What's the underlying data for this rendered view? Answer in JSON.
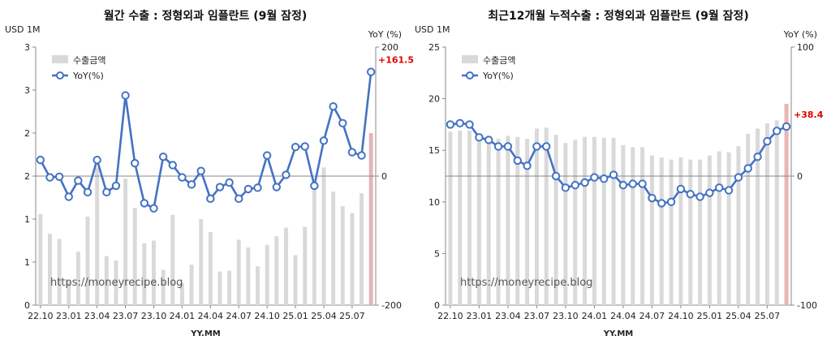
{
  "chart_data": [
    {
      "type": "bar",
      "title": "월간 수출 : 정형외과 임플란트 (9월 잠정)",
      "ylabel": "USD 1M",
      "y2label": "YoY (%)",
      "xlabel": "YY.MM",
      "ylim": [
        0,
        3
      ],
      "y2lim": [
        -200,
        200
      ],
      "yticks": [
        "0",
        "1",
        "1",
        "2",
        "2",
        "3",
        "3"
      ],
      "y2ticks": [
        "-200",
        "0",
        "200"
      ],
      "legend": {
        "position": "top-left",
        "bar_label": "수출금액",
        "line_label": "YoY(%)"
      },
      "watermark": "https://moneyrecipe.blog",
      "x": [
        "22.10",
        "22.11",
        "22.12",
        "23.01",
        "23.02",
        "23.03",
        "23.04",
        "23.05",
        "23.06",
        "23.07",
        "23.08",
        "23.09",
        "23.10",
        "23.11",
        "23.12",
        "24.01",
        "24.02",
        "24.03",
        "24.04",
        "24.05",
        "24.06",
        "24.07",
        "24.08",
        "24.09",
        "24.10",
        "24.11",
        "24.12",
        "25.01",
        "25.02",
        "25.03",
        "25.04",
        "25.05",
        "25.06",
        "25.07",
        "25.08",
        "25.09"
      ],
      "xtick_labels": [
        "22.10",
        "23.01",
        "23.04",
        "23.07",
        "23.10",
        "24.01",
        "24.04",
        "24.07",
        "24.10",
        "25.01",
        "25.04",
        "25.07"
      ],
      "series": [
        {
          "name": "수출금액",
          "kind": "bar",
          "axis": "left",
          "color": "#d9d9d9",
          "highlight_color": "#e8b4b4",
          "values": [
            1.06,
            0.83,
            0.77,
            0.28,
            0.62,
            1.03,
            1.6,
            0.57,
            0.52,
            1.47,
            1.13,
            0.72,
            0.75,
            0.41,
            1.05,
            0.26,
            0.47,
            1.0,
            0.85,
            0.39,
            0.4,
            0.76,
            0.67,
            0.45,
            0.7,
            0.8,
            0.9,
            0.58,
            0.91,
            1.4,
            1.6,
            1.32,
            1.15,
            1.07,
            1.3,
            2.0
          ]
        },
        {
          "name": "YoY(%)",
          "kind": "line",
          "axis": "right",
          "color": "#4472c4",
          "values": [
            25,
            -2,
            -1,
            -32,
            -7,
            -25,
            25,
            -25,
            -15,
            125,
            20,
            -42,
            -50,
            30,
            17,
            -2,
            -13,
            8,
            -35,
            -17,
            -10,
            -35,
            -20,
            -18,
            32,
            -17,
            2,
            45,
            46,
            -15,
            55,
            108,
            82,
            37,
            32,
            161.5
          ]
        }
      ],
      "annotation": "+161.5"
    },
    {
      "type": "bar",
      "title": "최근12개월 누적수출 : 정형외과 임플란트 (9월 잠정)",
      "ylabel": "USD 1M",
      "y2label": "YoY (%)",
      "xlabel": "YY.MM",
      "ylim": [
        0,
        25
      ],
      "y2lim": [
        -100,
        100
      ],
      "yticks": [
        "0",
        "5",
        "10",
        "15",
        "20",
        "25"
      ],
      "y2ticks": [
        "-100",
        "0",
        "100"
      ],
      "legend": {
        "position": "top-left",
        "bar_label": "수출금액",
        "line_label": "YoY(%)"
      },
      "watermark": "https://moneyrecipe.blog",
      "x": [
        "22.10",
        "22.11",
        "22.12",
        "23.01",
        "23.02",
        "23.03",
        "23.04",
        "23.05",
        "23.06",
        "23.07",
        "23.08",
        "23.09",
        "23.10",
        "23.11",
        "23.12",
        "24.01",
        "24.02",
        "24.03",
        "24.04",
        "24.05",
        "24.06",
        "24.07",
        "24.08",
        "24.09",
        "24.10",
        "24.11",
        "24.12",
        "25.01",
        "25.02",
        "25.03",
        "25.04",
        "25.05",
        "25.06",
        "25.07",
        "25.08",
        "25.09"
      ],
      "xtick_labels": [
        "22.10",
        "23.01",
        "23.04",
        "23.07",
        "23.10",
        "24.01",
        "24.04",
        "24.07",
        "24.10",
        "25.01",
        "25.04",
        "25.07"
      ],
      "series": [
        {
          "name": "수출금액",
          "kind": "bar",
          "axis": "left",
          "color": "#d9d9d9",
          "highlight_color": "#e8b4b4",
          "values": [
            16.8,
            16.9,
            16.9,
            16.5,
            16.4,
            16.1,
            16.4,
            16.3,
            16.1,
            17.1,
            17.2,
            16.5,
            15.7,
            16.0,
            16.3,
            16.3,
            16.2,
            16.2,
            15.5,
            15.3,
            15.3,
            14.5,
            14.3,
            14.1,
            14.3,
            14.1,
            14.1,
            14.5,
            14.9,
            14.8,
            15.4,
            16.6,
            17.1,
            17.6,
            17.9,
            19.5
          ]
        },
        {
          "name": "YoY(%)",
          "kind": "line",
          "axis": "right",
          "color": "#4472c4",
          "values": [
            40,
            41,
            40,
            30,
            28,
            23,
            23,
            12,
            8,
            23,
            23,
            0,
            -9,
            -7,
            -5,
            -1,
            -2,
            1,
            -7,
            -6,
            -6,
            -17,
            -21,
            -20,
            -10,
            -14,
            -16,
            -13,
            -9,
            -11,
            -1,
            6,
            15,
            27,
            35,
            38.4
          ]
        }
      ],
      "annotation": "+38.4"
    }
  ]
}
